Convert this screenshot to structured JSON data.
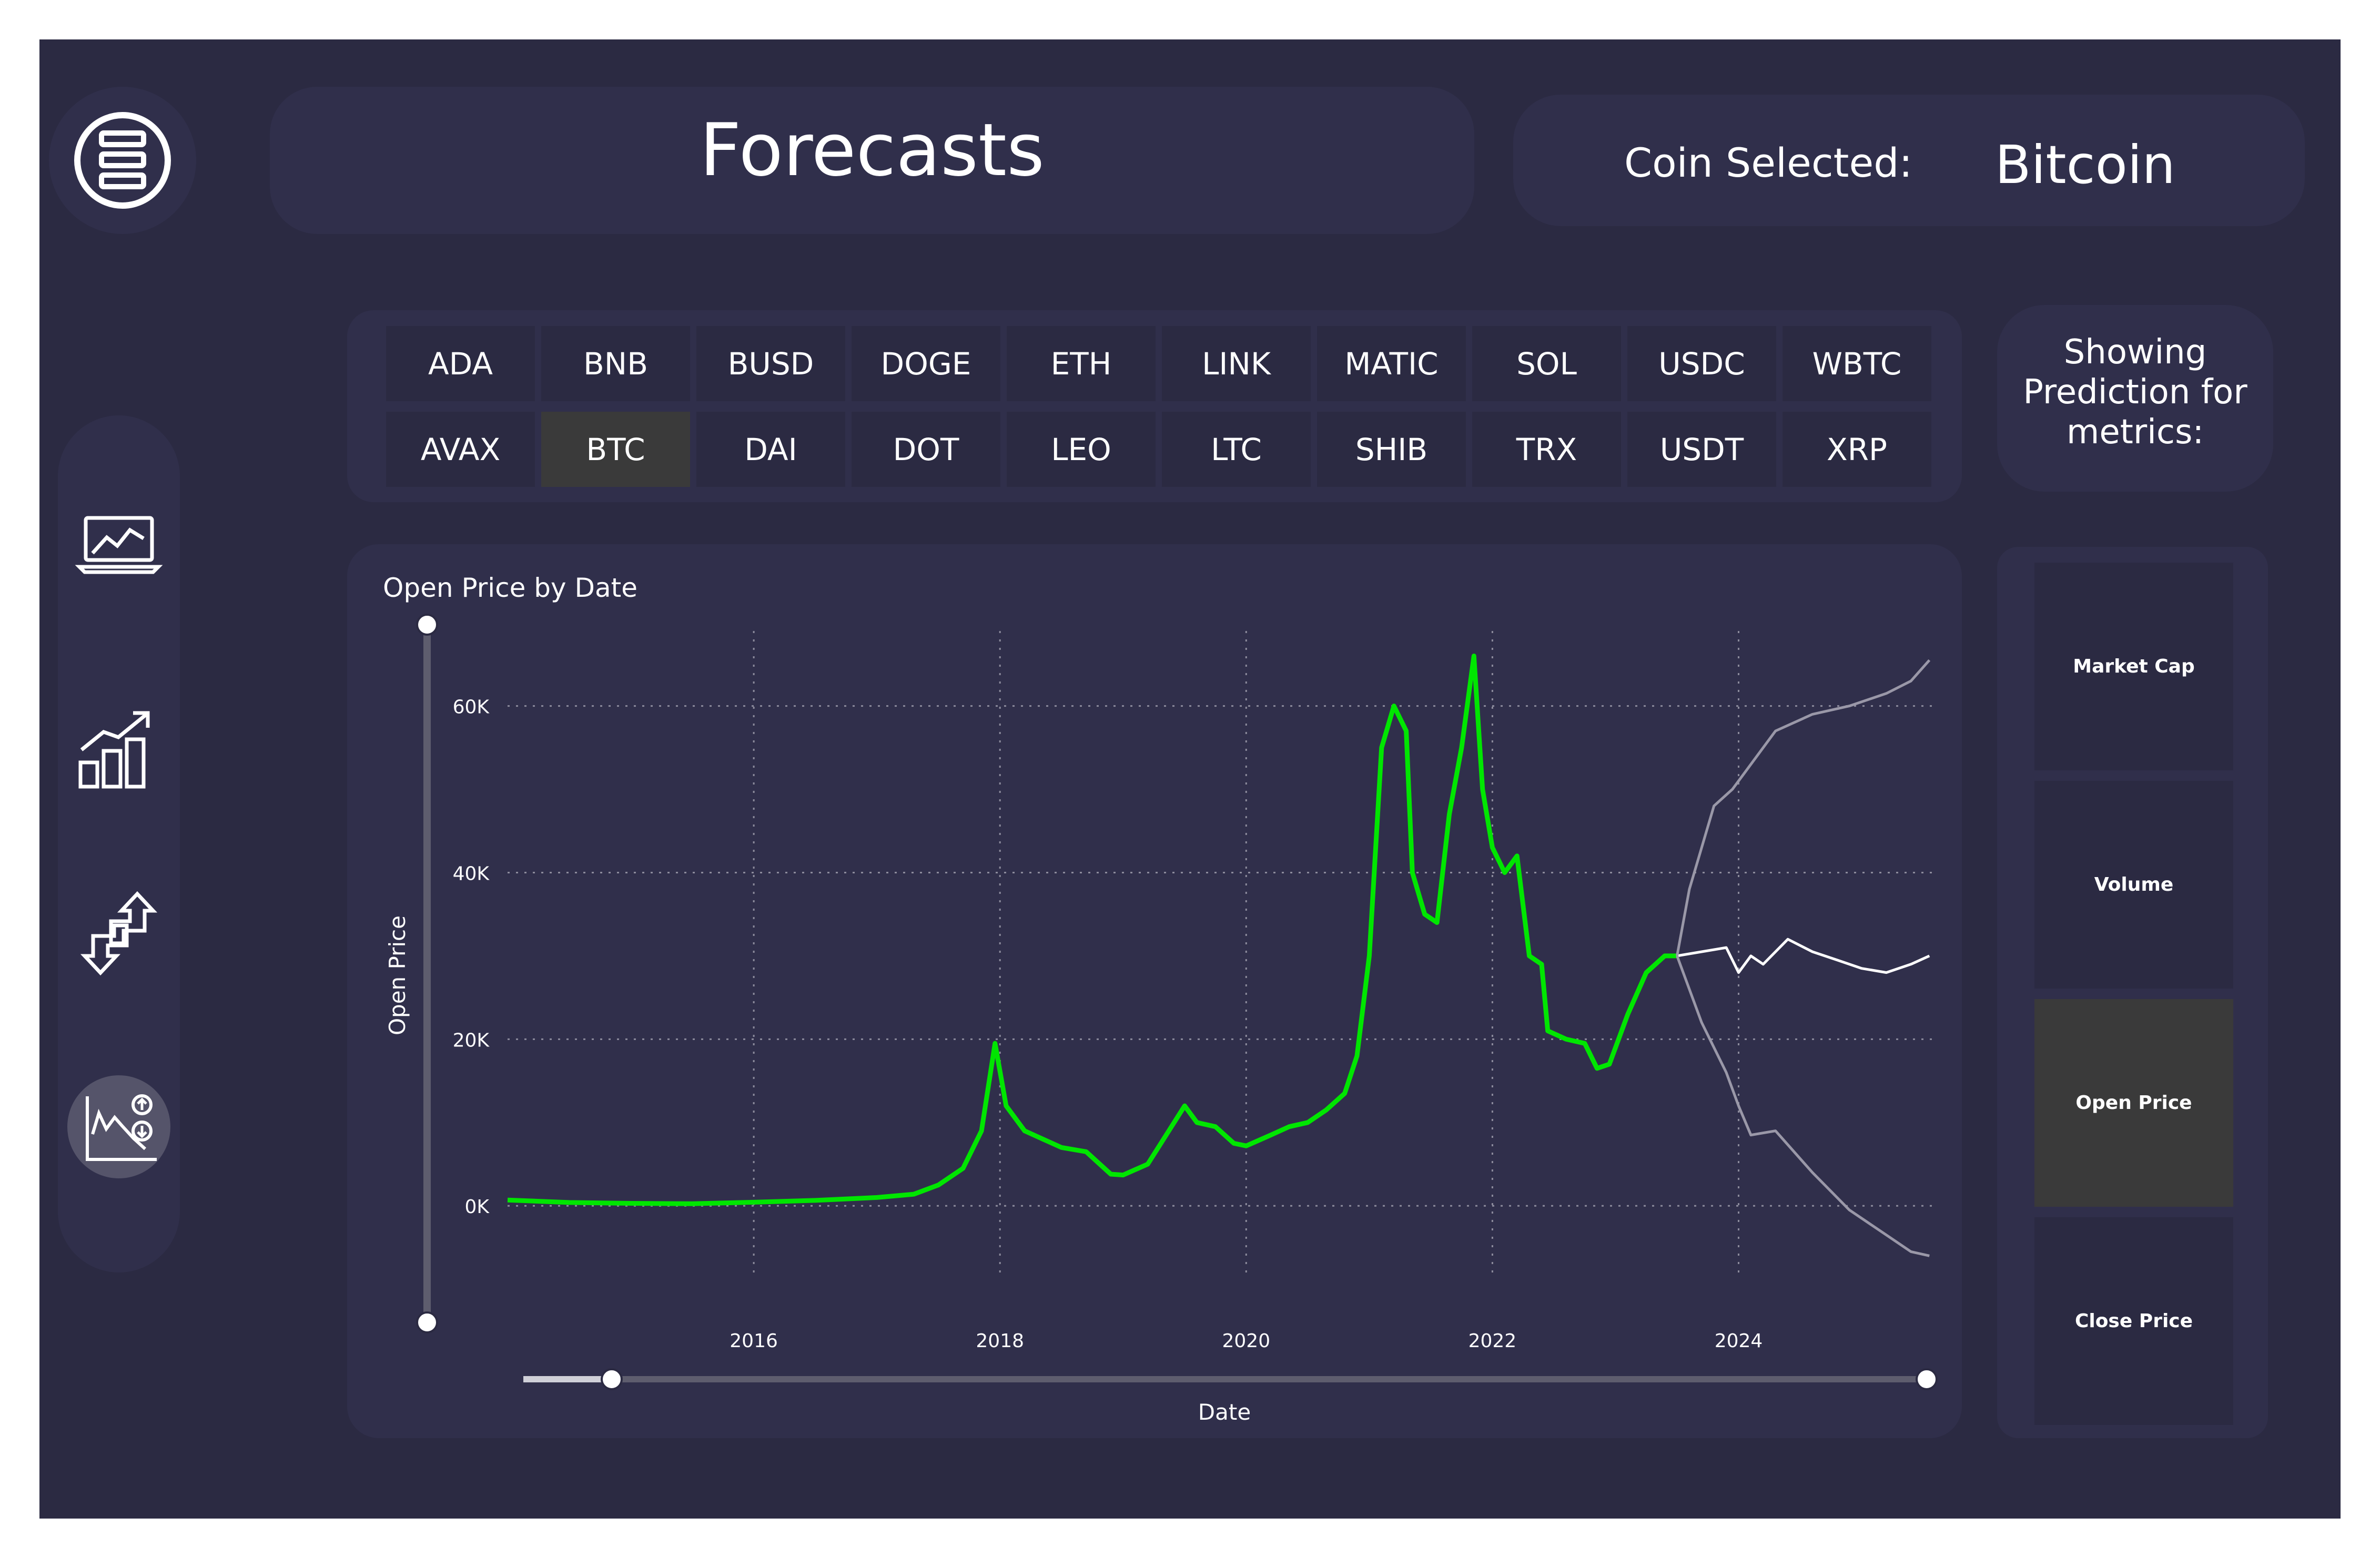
{
  "header": {
    "title": "Forecasts",
    "coin_label": "Coin Selected:",
    "coin_value": "Bitcoin"
  },
  "nav": {
    "icons": [
      "menu-icon",
      "trend-laptop-icon",
      "bar-growth-icon",
      "exchange-arrows-icon",
      "forecast-chart-icon"
    ],
    "active": "forecast-chart-icon"
  },
  "coins": {
    "row1": [
      "ADA",
      "BNB",
      "BUSD",
      "DOGE",
      "ETH",
      "LINK",
      "MATIC",
      "SOL",
      "USDC",
      "WBTC"
    ],
    "row2": [
      "AVAX",
      "BTC",
      "DAI",
      "DOT",
      "LEO",
      "LTC",
      "SHIB",
      "TRX",
      "USDT",
      "XRP"
    ],
    "selected": "BTC"
  },
  "metrics_panel": {
    "title": "Showing Prediction for metrics:"
  },
  "metrics": [
    {
      "label": "Market Cap",
      "selected": false
    },
    {
      "label": "Volume",
      "selected": false
    },
    {
      "label": "Open Price",
      "selected": true
    },
    {
      "label": "Close Price",
      "selected": false
    }
  ],
  "colors": {
    "background": "#2b2a42",
    "panel": "#302f4b",
    "actual_line": "#00e600",
    "forecast_line": "#ffffff",
    "forecast_band": "#9a98a8"
  },
  "chart_data": {
    "type": "line",
    "title": "Open Price by Date",
    "xlabel": "Date",
    "ylabel": "Open Price",
    "x_ticks": [
      "2016",
      "2018",
      "2020",
      "2022",
      "2024"
    ],
    "y_ticks": [
      "0K",
      "20K",
      "40K",
      "60K"
    ],
    "xlim": [
      2014.0,
      2025.6
    ],
    "ylim": [
      -8000,
      69000
    ],
    "grid": true,
    "series": [
      {
        "role": "actual",
        "x": [
          2014.0,
          2014.5,
          2015.0,
          2015.5,
          2016.0,
          2016.5,
          2017.0,
          2017.3,
          2017.5,
          2017.7,
          2017.85,
          2017.96,
          2018.05,
          2018.2,
          2018.35,
          2018.5,
          2018.7,
          2018.9,
          2019.0,
          2019.2,
          2019.35,
          2019.5,
          2019.6,
          2019.75,
          2019.9,
          2020.0,
          2020.2,
          2020.35,
          2020.5,
          2020.65,
          2020.8,
          2020.9,
          2021.0,
          2021.1,
          2021.2,
          2021.3,
          2021.35,
          2021.45,
          2021.55,
          2021.65,
          2021.75,
          2021.85,
          2021.92,
          2022.0,
          2022.1,
          2022.2,
          2022.3,
          2022.4,
          2022.45,
          2022.6,
          2022.75,
          2022.85,
          2022.95,
          2023.1,
          2023.25,
          2023.4,
          2023.5
        ],
        "y": [
          700,
          400,
          300,
          250,
          430,
          650,
          1000,
          1400,
          2500,
          4500,
          9000,
          19500,
          12000,
          9000,
          8000,
          7000,
          6500,
          3800,
          3700,
          5000,
          8500,
          12000,
          10000,
          9500,
          7500,
          7200,
          8500,
          9500,
          10000,
          11500,
          13500,
          18000,
          30000,
          55000,
          60000,
          57000,
          40000,
          35000,
          34000,
          47000,
          55000,
          66000,
          50000,
          43000,
          40000,
          42000,
          30000,
          29000,
          21000,
          20000,
          19500,
          16500,
          17000,
          23000,
          28000,
          30000,
          30000
        ]
      },
      {
        "role": "forecast",
        "x": [
          2023.5,
          2023.7,
          2023.9,
          2024.0,
          2024.1,
          2024.2,
          2024.4,
          2024.6,
          2024.8,
          2025.0,
          2025.2,
          2025.4,
          2025.55
        ],
        "y": [
          30000,
          30500,
          31000,
          28000,
          30000,
          29000,
          32000,
          30500,
          29500,
          28500,
          28000,
          29000,
          30000
        ]
      },
      {
        "role": "upper_bound",
        "x": [
          2023.5,
          2023.6,
          2023.8,
          2023.95,
          2024.05,
          2024.3,
          2024.6,
          2024.9,
          2025.2,
          2025.4,
          2025.55
        ],
        "y": [
          30000,
          38000,
          48000,
          50000,
          52000,
          57000,
          59000,
          60000,
          61500,
          63000,
          65500
        ]
      },
      {
        "role": "lower_bound",
        "x": [
          2023.5,
          2023.7,
          2023.9,
          2024.0,
          2024.1,
          2024.3,
          2024.6,
          2024.9,
          2025.2,
          2025.4,
          2025.55
        ],
        "y": [
          30000,
          22000,
          16000,
          12000,
          8500,
          9000,
          4000,
          -500,
          -3500,
          -5500,
          -6000
        ]
      }
    ]
  }
}
